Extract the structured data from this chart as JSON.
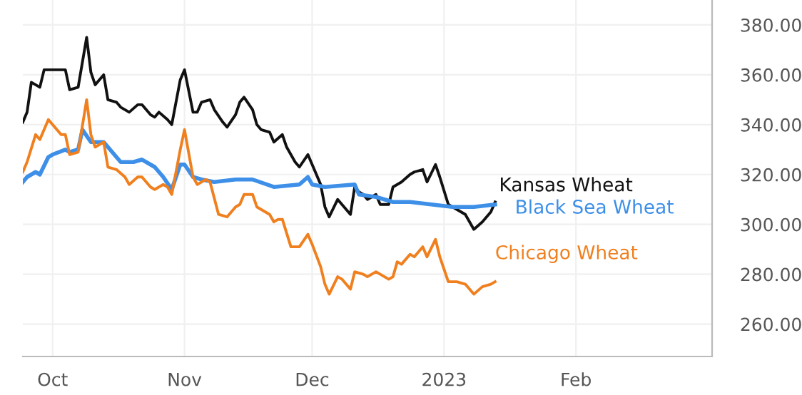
{
  "chart_data": {
    "type": "line",
    "xlim": [
      "2022-09-24",
      "2023-03-05"
    ],
    "xticks": [
      {
        "value": "2022-10-01",
        "label": "Oct"
      },
      {
        "value": "2022-11-01",
        "label": "Nov"
      },
      {
        "value": "2022-12-01",
        "label": "Dec"
      },
      {
        "value": "2023-01-01",
        "label": "2023"
      },
      {
        "value": "2023-02-01",
        "label": "Feb"
      }
    ],
    "ylim": [
      247,
      390
    ],
    "yticks": [
      {
        "value": 260,
        "label": "260.00"
      },
      {
        "value": 280,
        "label": "280.00"
      },
      {
        "value": 300,
        "label": "300.00"
      },
      {
        "value": 320,
        "label": "320.00"
      },
      {
        "value": 340,
        "label": "340.00"
      },
      {
        "value": 360,
        "label": "360.00"
      },
      {
        "value": 380,
        "label": "380.00"
      }
    ],
    "grid": true,
    "legend": false,
    "marker": "none",
    "line_style": "solid",
    "series": [
      {
        "name": "Kansas Wheat",
        "color": "#111111",
        "x": [
          "2022-09-24",
          "2022-09-25",
          "2022-09-26",
          "2022-09-28",
          "2022-09-29",
          "2022-10-02",
          "2022-10-04",
          "2022-10-05",
          "2022-10-07",
          "2022-10-09",
          "2022-10-10",
          "2022-10-11",
          "2022-10-13",
          "2022-10-14",
          "2022-10-16",
          "2022-10-17",
          "2022-10-19",
          "2022-10-21",
          "2022-10-22",
          "2022-10-24",
          "2022-10-25",
          "2022-10-26",
          "2022-10-28",
          "2022-10-29",
          "2022-10-31",
          "2022-11-01",
          "2022-11-03",
          "2022-11-04",
          "2022-11-05",
          "2022-11-07",
          "2022-11-08",
          "2022-11-10",
          "2022-11-11",
          "2022-11-13",
          "2022-11-14",
          "2022-11-15",
          "2022-11-17",
          "2022-11-18",
          "2022-11-19",
          "2022-11-21",
          "2022-11-22",
          "2022-11-24",
          "2022-11-25",
          "2022-11-27",
          "2022-11-28",
          "2022-11-30",
          "2022-12-01",
          "2022-12-03",
          "2022-12-04",
          "2022-12-05",
          "2022-12-07",
          "2022-12-08",
          "2022-12-10",
          "2022-12-11",
          "2022-12-12",
          "2022-12-13",
          "2022-12-14",
          "2022-12-16",
          "2022-12-17",
          "2022-12-19",
          "2022-12-20",
          "2022-12-22",
          "2022-12-24",
          "2022-12-25",
          "2022-12-27",
          "2022-12-28",
          "2022-12-30",
          "2022-12-31",
          "2023-01-02",
          "2023-01-04",
          "2023-01-06",
          "2023-01-07",
          "2023-01-08",
          "2023-01-10",
          "2023-01-12",
          "2023-01-13"
        ],
        "values": [
          341,
          345,
          357,
          355,
          362,
          362,
          362,
          354,
          355,
          375,
          361,
          356,
          360,
          350,
          349,
          347,
          345,
          348,
          348,
          344,
          343,
          345,
          342,
          340,
          358,
          362,
          345,
          345,
          349,
          350,
          346,
          341,
          339,
          344,
          349,
          351,
          346,
          340,
          338,
          337,
          333,
          336,
          331,
          325,
          323,
          328,
          324,
          316,
          307,
          303,
          310,
          308,
          304,
          315,
          313,
          312,
          310,
          312,
          308,
          308,
          315,
          317,
          320,
          321,
          322,
          317,
          324,
          319,
          308,
          306,
          304,
          301,
          298,
          301,
          305,
          309
        ]
      },
      {
        "name": "Black Sea Wheat",
        "color": "#3d8fe8",
        "x": [
          "2022-09-24",
          "2022-09-25",
          "2022-09-27",
          "2022-09-28",
          "2022-09-30",
          "2022-10-01",
          "2022-10-04",
          "2022-10-05",
          "2022-10-07",
          "2022-10-08",
          "2022-10-10",
          "2022-10-11",
          "2022-10-13",
          "2022-10-15",
          "2022-10-17",
          "2022-10-20",
          "2022-10-22",
          "2022-10-25",
          "2022-10-27",
          "2022-10-29",
          "2022-10-31",
          "2022-11-01",
          "2022-11-03",
          "2022-11-05",
          "2022-11-08",
          "2022-11-13",
          "2022-11-17",
          "2022-11-22",
          "2022-11-28",
          "2022-11-30",
          "2022-12-01",
          "2022-12-04",
          "2022-12-11",
          "2022-12-12",
          "2022-12-16",
          "2022-12-20",
          "2022-12-24",
          "2022-12-29",
          "2023-01-03",
          "2023-01-08",
          "2023-01-13"
        ],
        "values": [
          317,
          319,
          321,
          320,
          327,
          328,
          330,
          329,
          330,
          338,
          333,
          333,
          333,
          329,
          325,
          325,
          326,
          323,
          319,
          314,
          324,
          324,
          319,
          318,
          317,
          318,
          318,
          315,
          316,
          319,
          316,
          315,
          316,
          312,
          311,
          309,
          309,
          308,
          307,
          307,
          308
        ]
      },
      {
        "name": "Chicago Wheat",
        "color": "#f07f1e",
        "x": [
          "2022-09-24",
          "2022-09-25",
          "2022-09-27",
          "2022-09-28",
          "2022-09-30",
          "2022-10-01",
          "2022-10-03",
          "2022-10-04",
          "2022-10-05",
          "2022-10-07",
          "2022-10-09",
          "2022-10-10",
          "2022-10-11",
          "2022-10-13",
          "2022-10-14",
          "2022-10-16",
          "2022-10-18",
          "2022-10-19",
          "2022-10-21",
          "2022-10-22",
          "2022-10-24",
          "2022-10-25",
          "2022-10-27",
          "2022-10-28",
          "2022-10-29",
          "2022-10-31",
          "2022-11-01",
          "2022-11-03",
          "2022-11-04",
          "2022-11-06",
          "2022-11-07",
          "2022-11-09",
          "2022-11-11",
          "2022-11-13",
          "2022-11-14",
          "2022-11-15",
          "2022-11-17",
          "2022-11-18",
          "2022-11-20",
          "2022-11-21",
          "2022-11-22",
          "2022-11-23",
          "2022-11-24",
          "2022-11-26",
          "2022-11-28",
          "2022-11-30",
          "2022-12-01",
          "2022-12-03",
          "2022-12-04",
          "2022-12-05",
          "2022-12-07",
          "2022-12-08",
          "2022-12-10",
          "2022-12-11",
          "2022-12-13",
          "2022-12-14",
          "2022-12-16",
          "2022-12-17",
          "2022-12-19",
          "2022-12-20",
          "2022-12-21",
          "2022-12-22",
          "2022-12-24",
          "2022-12-25",
          "2022-12-27",
          "2022-12-28",
          "2022-12-30",
          "2022-12-31",
          "2023-01-02",
          "2023-01-04",
          "2023-01-06",
          "2023-01-08",
          "2023-01-10",
          "2023-01-12",
          "2023-01-13"
        ],
        "values": [
          321,
          325,
          336,
          334,
          342,
          340,
          336,
          336,
          328,
          329,
          350,
          336,
          331,
          333,
          323,
          322,
          319,
          316,
          319,
          319,
          315,
          314,
          316,
          315,
          312,
          330,
          338,
          319,
          316,
          318,
          317,
          304,
          303,
          307,
          308,
          312,
          312,
          307,
          305,
          304,
          301,
          302,
          302,
          291,
          291,
          296,
          292,
          283,
          276,
          272,
          279,
          278,
          274,
          281,
          280,
          279,
          281,
          280,
          278,
          279,
          285,
          284,
          288,
          287,
          291,
          287,
          294,
          287,
          277,
          277,
          276,
          272,
          275,
          276,
          277
        ]
      }
    ]
  }
}
